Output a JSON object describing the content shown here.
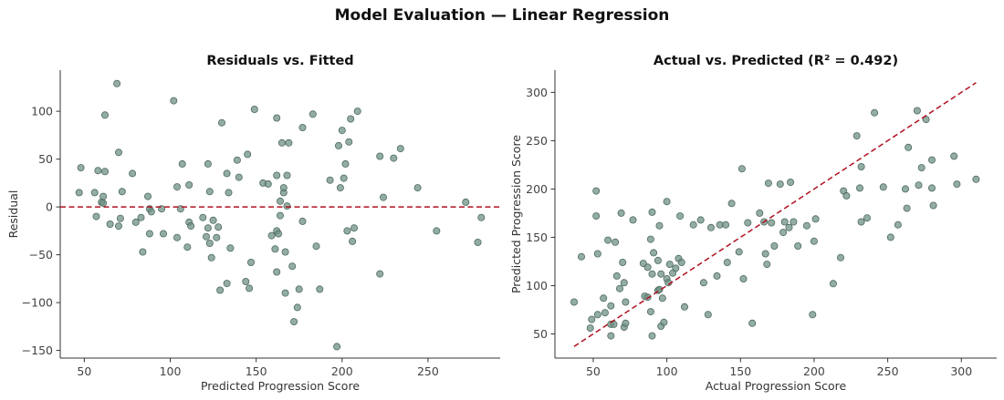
{
  "suptitle": "Model Evaluation — Linear Regression",
  "chart_data": [
    {
      "type": "scatter",
      "title": "Residuals vs. Fitted",
      "xlabel": "Predicted Progression Score",
      "ylabel": "Residual",
      "xlim": [
        36,
        292
      ],
      "ylim": [
        -158,
        143
      ],
      "xticks": [
        50,
        100,
        150,
        200,
        250
      ],
      "yticks": [
        -150,
        -100,
        -50,
        0,
        50,
        100
      ],
      "grid": false,
      "marker_color": "#6f9184",
      "reference_line": {
        "type": "horizontal",
        "y": 0,
        "color": "#b01020",
        "style": "dashed"
      },
      "points": [
        [
          47,
          15
        ],
        [
          48,
          41
        ],
        [
          56,
          15
        ],
        [
          57,
          -10
        ],
        [
          58,
          38
        ],
        [
          60,
          5
        ],
        [
          61,
          4
        ],
        [
          61,
          11
        ],
        [
          62,
          96
        ],
        [
          62,
          37
        ],
        [
          65,
          -18
        ],
        [
          69,
          129
        ],
        [
          70,
          57
        ],
        [
          70,
          -20
        ],
        [
          71,
          -12
        ],
        [
          72,
          16
        ],
        [
          78,
          35
        ],
        [
          80,
          -16
        ],
        [
          83,
          -11
        ],
        [
          84,
          -47
        ],
        [
          87,
          11
        ],
        [
          88,
          -2
        ],
        [
          88,
          -28
        ],
        [
          89,
          -5
        ],
        [
          95,
          -2
        ],
        [
          96,
          -28
        ],
        [
          102,
          111
        ],
        [
          104,
          21
        ],
        [
          104,
          -32
        ],
        [
          106,
          -2
        ],
        [
          107,
          45
        ],
        [
          110,
          -42
        ],
        [
          111,
          23
        ],
        [
          111,
          -16
        ],
        [
          112,
          -20
        ],
        [
          119,
          -11
        ],
        [
          121,
          -31
        ],
        [
          122,
          -22
        ],
        [
          122,
          45
        ],
        [
          123,
          -38
        ],
        [
          123,
          16
        ],
        [
          124,
          -53
        ],
        [
          125,
          -14
        ],
        [
          127,
          -32
        ],
        [
          128,
          -21
        ],
        [
          129,
          -87
        ],
        [
          130,
          88
        ],
        [
          133,
          -80
        ],
        [
          133,
          35
        ],
        [
          134,
          15
        ],
        [
          135,
          -43
        ],
        [
          139,
          49
        ],
        [
          140,
          31
        ],
        [
          144,
          -78
        ],
        [
          145,
          55
        ],
        [
          146,
          -85
        ],
        [
          147,
          -58
        ],
        [
          149,
          102
        ],
        [
          154,
          25
        ],
        [
          157,
          24
        ],
        [
          159,
          -30
        ],
        [
          161,
          -44
        ],
        [
          162,
          -68
        ],
        [
          162,
          33
        ],
        [
          162,
          -25
        ],
        [
          162,
          93
        ],
        [
          163,
          -28
        ],
        [
          164,
          6
        ],
        [
          164,
          -9
        ],
        [
          165,
          67
        ],
        [
          166,
          15
        ],
        [
          166,
          20
        ],
        [
          167,
          -90
        ],
        [
          167,
          -47
        ],
        [
          168,
          1
        ],
        [
          168,
          33
        ],
        [
          169,
          67
        ],
        [
          171,
          -62
        ],
        [
          172,
          -120
        ],
        [
          174,
          -105
        ],
        [
          175,
          -86
        ],
        [
          177,
          -15
        ],
        [
          177,
          83
        ],
        [
          183,
          97
        ],
        [
          185,
          -41
        ],
        [
          187,
          -86
        ],
        [
          193,
          28
        ],
        [
          197,
          -146
        ],
        [
          198,
          64
        ],
        [
          199,
          20
        ],
        [
          200,
          80
        ],
        [
          201,
          30
        ],
        [
          202,
          45
        ],
        [
          203,
          -25
        ],
        [
          204,
          68
        ],
        [
          205,
          92
        ],
        [
          206,
          -36
        ],
        [
          207,
          -22
        ],
        [
          209,
          100
        ],
        [
          222,
          53
        ],
        [
          222,
          -70
        ],
        [
          224,
          10
        ],
        [
          230,
          51
        ],
        [
          234,
          61
        ],
        [
          244,
          20
        ],
        [
          255,
          -25
        ],
        [
          272,
          5
        ],
        [
          279,
          -37
        ],
        [
          281,
          -11
        ]
      ]
    },
    {
      "type": "scatter",
      "title": "Actual vs. Predicted  (R² = 0.492)",
      "xlabel": "Actual Progression Score",
      "ylabel": "Predicted Progression Score",
      "xlim": [
        24,
        324
      ],
      "ylim": [
        25,
        323
      ],
      "xticks": [
        50,
        100,
        150,
        200,
        250,
        300
      ],
      "yticks": [
        50,
        100,
        150,
        200,
        250,
        300
      ],
      "grid": false,
      "marker_color": "#6f9184",
      "reference_line": {
        "type": "identity",
        "from": 37,
        "to": 310,
        "color": "#b01020",
        "style": "dashed"
      },
      "points": [
        [
          37,
          83
        ],
        [
          42,
          130
        ],
        [
          48,
          56
        ],
        [
          49,
          65
        ],
        [
          52,
          198
        ],
        [
          52,
          172
        ],
        [
          53,
          133
        ],
        [
          53,
          70
        ],
        [
          57,
          87
        ],
        [
          58,
          72
        ],
        [
          60,
          147
        ],
        [
          62,
          48
        ],
        [
          62,
          79
        ],
        [
          62,
          60
        ],
        [
          64,
          60
        ],
        [
          65,
          145
        ],
        [
          66,
          110
        ],
        [
          68,
          97
        ],
        [
          69,
          175
        ],
        [
          70,
          124
        ],
        [
          71,
          57
        ],
        [
          71,
          103
        ],
        [
          72,
          61
        ],
        [
          72,
          83
        ],
        [
          77,
          168
        ],
        [
          84,
          123
        ],
        [
          85,
          89
        ],
        [
          87,
          119
        ],
        [
          87,
          88
        ],
        [
          89,
          73
        ],
        [
          89,
          148
        ],
        [
          90,
          176
        ],
        [
          90,
          48
        ],
        [
          90,
          112
        ],
        [
          91,
          134
        ],
        [
          94,
          126
        ],
        [
          94,
          95
        ],
        [
          95,
          96
        ],
        [
          95,
          162
        ],
        [
          96,
          112
        ],
        [
          96,
          58
        ],
        [
          97,
          87
        ],
        [
          98,
          62
        ],
        [
          100,
          107
        ],
        [
          100,
          187
        ],
        [
          101,
          103
        ],
        [
          102,
          122
        ],
        [
          104,
          113
        ],
        [
          106,
          118
        ],
        [
          108,
          128
        ],
        [
          109,
          172
        ],
        [
          110,
          124
        ],
        [
          112,
          78
        ],
        [
          118,
          163
        ],
        [
          123,
          168
        ],
        [
          125,
          103
        ],
        [
          128,
          70
        ],
        [
          130,
          160
        ],
        [
          134,
          110
        ],
        [
          136,
          163
        ],
        [
          140,
          163
        ],
        [
          141,
          124
        ],
        [
          144,
          185
        ],
        [
          149,
          135
        ],
        [
          151,
          221
        ],
        [
          152,
          107
        ],
        [
          155,
          165
        ],
        [
          158,
          61
        ],
        [
          163,
          175
        ],
        [
          166,
          166
        ],
        [
          167,
          133
        ],
        [
          168,
          122
        ],
        [
          169,
          206
        ],
        [
          171,
          165
        ],
        [
          173,
          141
        ],
        [
          177,
          205
        ],
        [
          179,
          155
        ],
        [
          180,
          166
        ],
        [
          183,
          160
        ],
        [
          184,
          207
        ],
        [
          186,
          166
        ],
        [
          189,
          141
        ],
        [
          195,
          162
        ],
        [
          199,
          70
        ],
        [
          200,
          146
        ],
        [
          201,
          169
        ],
        [
          213,
          102
        ],
        [
          218,
          129
        ],
        [
          220,
          198
        ],
        [
          222,
          193
        ],
        [
          229,
          255
        ],
        [
          231,
          201
        ],
        [
          232,
          166
        ],
        [
          232,
          223
        ],
        [
          236,
          170
        ],
        [
          241,
          279
        ],
        [
          247,
          202
        ],
        [
          252,
          150
        ],
        [
          257,
          163
        ],
        [
          262,
          200
        ],
        [
          263,
          180
        ],
        [
          264,
          243
        ],
        [
          270,
          281
        ],
        [
          271,
          204
        ],
        [
          273,
          222
        ],
        [
          276,
          272
        ],
        [
          280,
          230
        ],
        [
          280,
          201
        ],
        [
          281,
          183
        ],
        [
          295,
          234
        ],
        [
          297,
          205
        ],
        [
          310,
          210
        ]
      ]
    }
  ]
}
